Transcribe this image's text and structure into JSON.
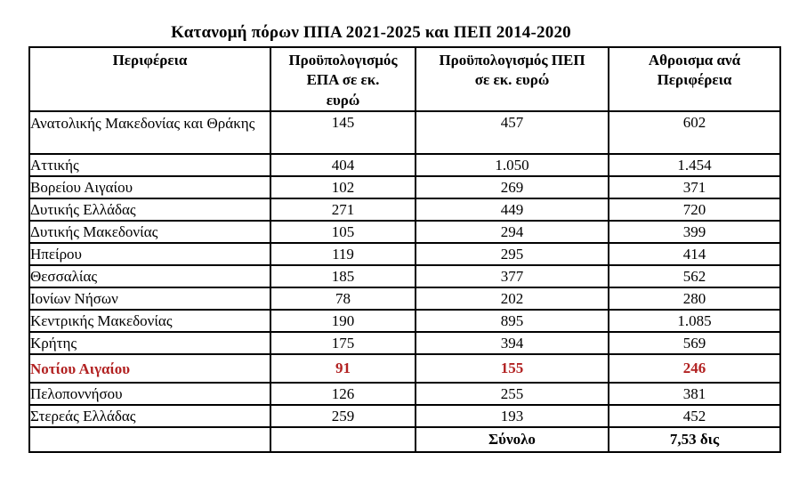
{
  "title": "Κατανομή πόρων ΠΠΑ 2021-2025 και ΠΕΠ 2014-2020",
  "colors": {
    "highlight_text": "#b22222",
    "border": "#000000",
    "text": "#000000",
    "background": "#ffffff"
  },
  "table": {
    "headers": [
      "Περιφέρεια",
      "Προϋπολογισμός\nΕΠΑ σε εκ.\nευρώ",
      "Προϋπολογισμός ΠΕΠ\nσε εκ. ευρώ",
      "Αθροισμα ανά\nΠεριφέρεια"
    ],
    "rows": [
      {
        "region": "Ανατολικής Μακεδονίας και Θράκης",
        "epa": "145",
        "pep": "457",
        "sum": "602",
        "highlight": false
      },
      {
        "region": "Αττικής",
        "epa": "404",
        "pep": "1.050",
        "sum": "1.454",
        "highlight": false
      },
      {
        "region": "Βορείου Αιγαίου",
        "epa": "102",
        "pep": "269",
        "sum": "371",
        "highlight": false
      },
      {
        "region": "Δυτικής Ελλάδας",
        "epa": "271",
        "pep": "449",
        "sum": "720",
        "highlight": false
      },
      {
        "region": "Δυτικής Μακεδονίας",
        "epa": "105",
        "pep": "294",
        "sum": "399",
        "highlight": false
      },
      {
        "region": "Ηπείρου",
        "epa": "119",
        "pep": "295",
        "sum": "414",
        "highlight": false
      },
      {
        "region": "Θεσσαλίας",
        "epa": "185",
        "pep": "377",
        "sum": "562",
        "highlight": false
      },
      {
        "region": "Ιονίων Νήσων",
        "epa": "78",
        "pep": "202",
        "sum": "280",
        "highlight": false
      },
      {
        "region": "Κεντρικής Μακεδονίας",
        "epa": "190",
        "pep": "895",
        "sum": "1.085",
        "highlight": false
      },
      {
        "region": "Κρήτης",
        "epa": "175",
        "pep": "394",
        "sum": "569",
        "highlight": false
      },
      {
        "region": "Νοτίου Αιγαίου",
        "epa": "91",
        "pep": "155",
        "sum": "246",
        "highlight": true
      },
      {
        "region": "Πελοποννήσου",
        "epa": "126",
        "pep": "255",
        "sum": "381",
        "highlight": false
      },
      {
        "region": "Στερεάς Ελλάδας",
        "epa": "259",
        "pep": "193",
        "sum": "452",
        "highlight": false
      }
    ],
    "footer": {
      "label": "Σύνολο",
      "total": "7,53 δις"
    }
  }
}
